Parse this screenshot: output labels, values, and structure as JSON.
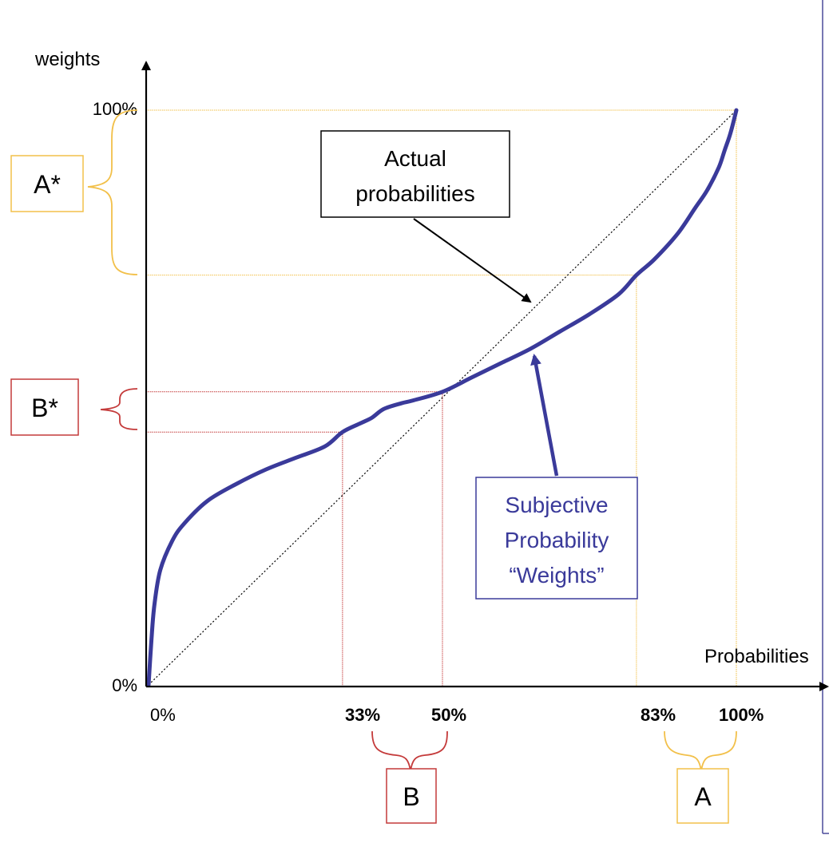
{
  "chart_data": {
    "type": "line",
    "title": "",
    "xlabel": "Probabilities",
    "ylabel": "weights",
    "xlim": [
      0,
      100
    ],
    "ylim": [
      0,
      100
    ],
    "x_tick_labels": [
      {
        "value": 0,
        "label": "0%"
      },
      {
        "value": 33,
        "label": "33%"
      },
      {
        "value": 50,
        "label": "50%"
      },
      {
        "value": 83,
        "label": "83%"
      },
      {
        "value": 100,
        "label": "100%"
      }
    ],
    "y_tick_labels": [
      {
        "value": 0,
        "label": "0%"
      },
      {
        "value": 100,
        "label": "100%"
      }
    ],
    "series": [
      {
        "name": "Actual probabilities",
        "style": "dotted",
        "color": "#000000",
        "x": [
          0,
          100
        ],
        "y": [
          0,
          100
        ]
      },
      {
        "name": "Subjective Probability “Weights”",
        "style": "solid",
        "color": "#3a3a9a",
        "x": [
          0,
          0.5,
          1,
          2,
          4,
          6,
          10,
          15,
          20,
          25,
          30,
          33,
          36,
          38,
          40,
          43,
          45,
          50,
          55,
          60,
          65,
          70,
          75,
          80,
          83,
          86,
          90,
          93,
          95,
          97,
          98,
          99,
          100
        ],
        "y": [
          0,
          8,
          14,
          20,
          25,
          28,
          32,
          35,
          37.5,
          39.5,
          41.5,
          44,
          45.5,
          46.5,
          48,
          49,
          49.5,
          51,
          53.5,
          56,
          58.5,
          61.5,
          64.5,
          68,
          71.3,
          74,
          78.5,
          83,
          86,
          90,
          93,
          96,
          100
        ]
      }
    ],
    "annotations": {
      "actual_box": {
        "line1": "Actual",
        "line2": "probabilities"
      },
      "subjective_box": {
        "line1": "Subjective",
        "line2": "Probability",
        "line3": "“Weights”"
      },
      "A_star": "A*",
      "B_star": "B*",
      "A": "A",
      "B": "B"
    },
    "guides": {
      "A_color": "#f2c04a",
      "B_color": "#c43a3a",
      "A_range_x": [
        83,
        100
      ],
      "A_range_y": [
        71.3,
        100
      ],
      "B_range_x": [
        33,
        50
      ],
      "B_range_y": [
        44,
        51
      ]
    },
    "grid": false,
    "legend": "none"
  }
}
